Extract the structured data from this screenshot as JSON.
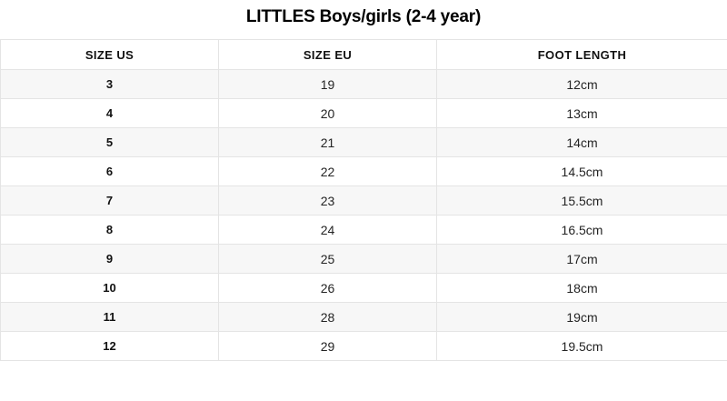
{
  "page": {
    "title": "LITTLES Boys/girls (2-4 year)"
  },
  "chart_data": {
    "type": "table",
    "title": "LITTLES Boys/girls (2-4 year)",
    "columns": [
      "SIZE US",
      "SIZE EU",
      "FOOT LENGTH"
    ],
    "rows": [
      [
        "3",
        "19",
        "12cm"
      ],
      [
        "4",
        "20",
        "13cm"
      ],
      [
        "5",
        "21",
        "14cm"
      ],
      [
        "6",
        "22",
        "14.5cm"
      ],
      [
        "7",
        "23",
        "15.5cm"
      ],
      [
        "8",
        "24",
        "16.5cm"
      ],
      [
        "9",
        "25",
        "17cm"
      ],
      [
        "10",
        "26",
        "18cm"
      ],
      [
        "11",
        "28",
        "19cm"
      ],
      [
        "12",
        "29",
        "19.5cm"
      ]
    ],
    "layout": {
      "stripe_rows": "odd",
      "header_background": "#ffffff"
    }
  },
  "colors": {
    "stripe": "#f7f7f7",
    "border": "#e4e4e4",
    "title_text": "#000000",
    "header_text": "#111111",
    "cell_text": "#242424"
  }
}
